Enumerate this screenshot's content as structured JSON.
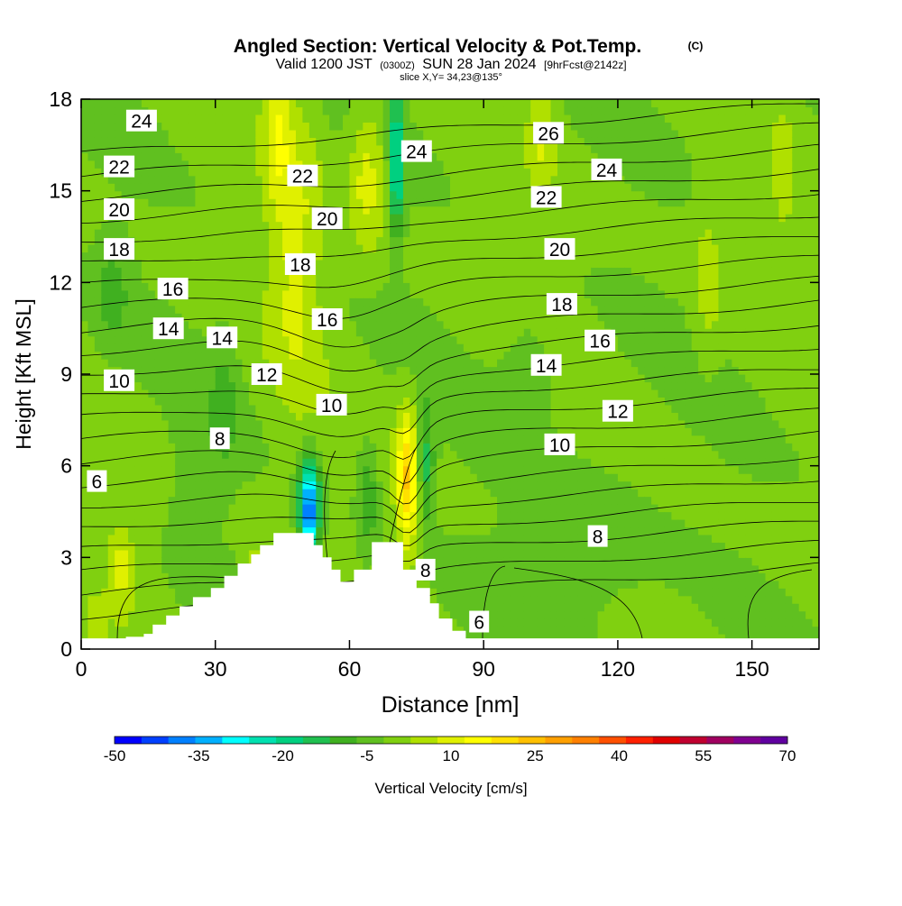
{
  "chart_data": {
    "type": "heatmap",
    "title": "Angled Section: Vertical Velocity & Pot.Temp.",
    "title_unit": "(C)",
    "subtitle_parts": [
      "Valid 1200 JST",
      "(0300Z)",
      "SUN 28 Jan 2024",
      "[9hrFcst@2142z]"
    ],
    "slice_label": "slice X,Y= 34,23@135°",
    "xlabel": "Distance [nm]",
    "ylabel": "Height [Kft MSL]",
    "xlim": [
      0,
      165
    ],
    "ylim": [
      0,
      18
    ],
    "x_ticks": [
      "0",
      "30",
      "60",
      "90",
      "120",
      "150"
    ],
    "y_ticks": [
      "0",
      "3",
      "6",
      "9",
      "12",
      "15",
      "18"
    ],
    "colorbar": {
      "label": "Vertical Velocity [cm/s]",
      "tick_labels": [
        "-50",
        "-35",
        "-20",
        "-5",
        "10",
        "25",
        "40",
        "55",
        "70"
      ],
      "levels": [
        -50,
        -45,
        -40,
        -35,
        -30,
        -25,
        -20,
        -15,
        -10,
        -5,
        0,
        5,
        10,
        15,
        20,
        25,
        30,
        35,
        40,
        45,
        50,
        55,
        60,
        65,
        70
      ],
      "colors": [
        "#0000ff",
        "#0040ff",
        "#0080ff",
        "#00b0ff",
        "#00ffff",
        "#00e0b0",
        "#00d080",
        "#20c050",
        "#40b020",
        "#60c020",
        "#80d010",
        "#b0e000",
        "#e0f000",
        "#ffff00",
        "#ffe000",
        "#ffc000",
        "#ffa000",
        "#ff8000",
        "#ff5000",
        "#ff2000",
        "#e00000",
        "#c00030",
        "#a00060",
        "#800090",
        "#6000a0"
      ]
    },
    "theta_contour_labels": [
      {
        "text": "24",
        "x": 13.5,
        "y": 17.3
      },
      {
        "text": "26",
        "x": 104.5,
        "y": 16.9
      },
      {
        "text": "24",
        "x": 75,
        "y": 16.3
      },
      {
        "text": "22",
        "x": 8.5,
        "y": 15.8
      },
      {
        "text": "24",
        "x": 117.5,
        "y": 15.7
      },
      {
        "text": "22",
        "x": 49.5,
        "y": 15.5
      },
      {
        "text": "22",
        "x": 104,
        "y": 14.8
      },
      {
        "text": "20",
        "x": 8.5,
        "y": 14.4
      },
      {
        "text": "20",
        "x": 55,
        "y": 14.1
      },
      {
        "text": "18",
        "x": 8.5,
        "y": 13.1
      },
      {
        "text": "20",
        "x": 107,
        "y": 13.1
      },
      {
        "text": "18",
        "x": 49,
        "y": 12.6
      },
      {
        "text": "16",
        "x": 20.5,
        "y": 11.8
      },
      {
        "text": "18",
        "x": 107.5,
        "y": 11.3
      },
      {
        "text": "16",
        "x": 55,
        "y": 10.8
      },
      {
        "text": "14",
        "x": 19.5,
        "y": 10.5
      },
      {
        "text": "14",
        "x": 31.5,
        "y": 10.2
      },
      {
        "text": "16",
        "x": 116,
        "y": 10.1
      },
      {
        "text": "14",
        "x": 104,
        "y": 9.3
      },
      {
        "text": "12",
        "x": 41.5,
        "y": 9.0
      },
      {
        "text": "10",
        "x": 8.5,
        "y": 8.8
      },
      {
        "text": "10",
        "x": 56,
        "y": 8.0
      },
      {
        "text": "12",
        "x": 120,
        "y": 7.8
      },
      {
        "text": "8",
        "x": 31,
        "y": 6.9
      },
      {
        "text": "10",
        "x": 107,
        "y": 6.7
      },
      {
        "text": "6",
        "x": 3.5,
        "y": 5.5
      },
      {
        "text": "8",
        "x": 115.5,
        "y": 3.7
      },
      {
        "text": "8",
        "x": 77,
        "y": 2.6
      },
      {
        "text": "6",
        "x": 89,
        "y": 0.9
      }
    ]
  }
}
